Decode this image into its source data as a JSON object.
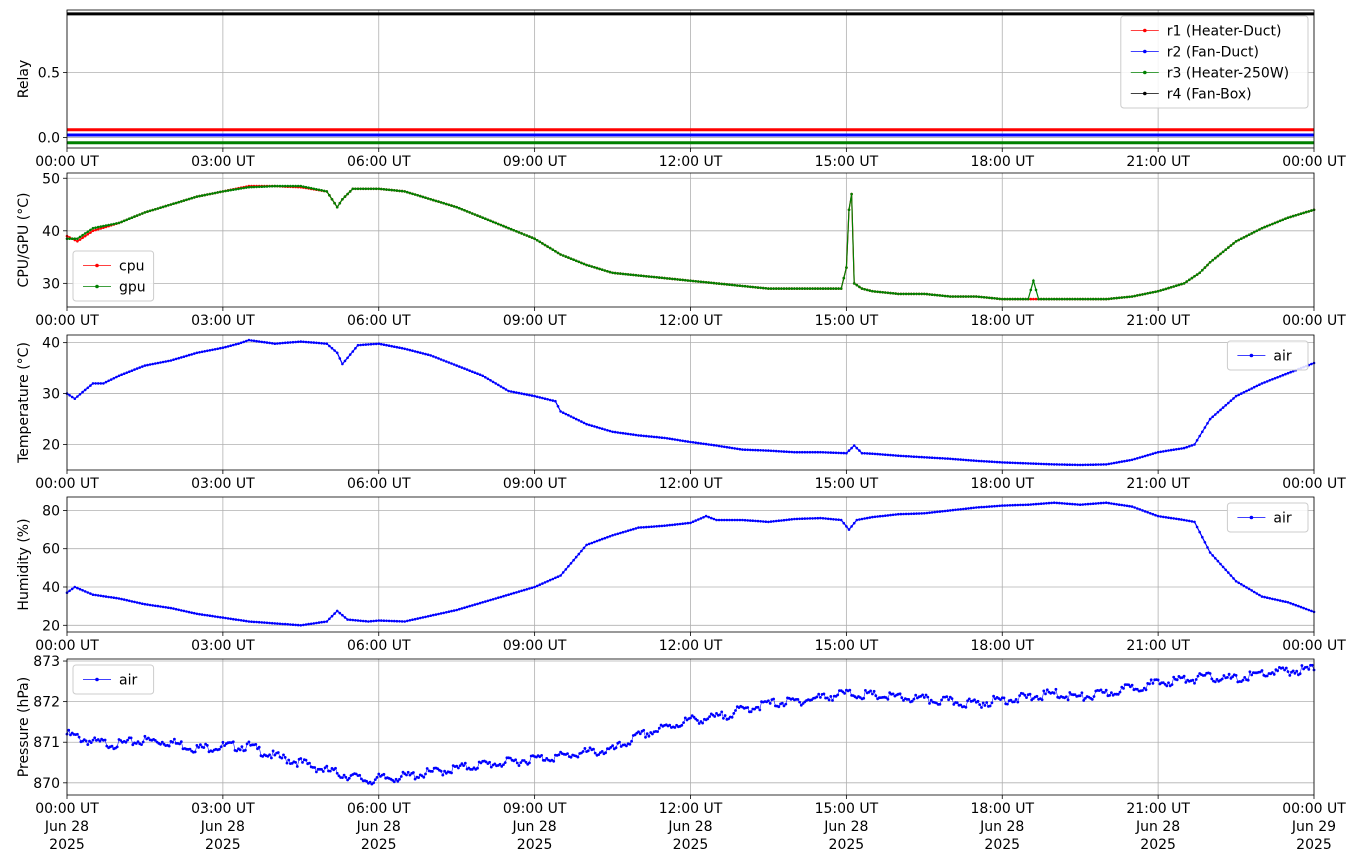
{
  "chart_data": [
    {
      "type": "line",
      "ylabel": "Relay",
      "ylim": [
        -0.08,
        0.98
      ],
      "yticks": [
        0.0,
        0.5
      ],
      "ytick_labels": [
        "0.0",
        "0.5"
      ],
      "xlim": [
        0,
        24
      ],
      "xticks": [
        0,
        3,
        6,
        9,
        12,
        15,
        18,
        21,
        24
      ],
      "xtick_labels": [
        "00:00 UT",
        "03:00 UT",
        "06:00 UT",
        "09:00 UT",
        "12:00 UT",
        "15:00 UT",
        "18:00 UT",
        "21:00 UT",
        "00:00 UT"
      ],
      "grid": true,
      "legend": "top-right",
      "series": [
        {
          "name": "r1 (Heater-Duct)",
          "color": "#ff0000",
          "x": [
            0,
            24
          ],
          "y": [
            0.06,
            0.06
          ]
        },
        {
          "name": "r2 (Fan-Duct)",
          "color": "#0000ff",
          "x": [
            0,
            24
          ],
          "y": [
            0.02,
            0.02
          ]
        },
        {
          "name": "r3 (Heater-250W)",
          "color": "#008000",
          "x": [
            0,
            24
          ],
          "y": [
            -0.04,
            -0.04
          ]
        },
        {
          "name": "r4 (Fan-Box)",
          "color": "#000000",
          "x": [
            0,
            24
          ],
          "y": [
            0.95,
            0.95
          ]
        }
      ]
    },
    {
      "type": "line",
      "ylabel": "CPU/GPU (°C)",
      "ylim": [
        25.5,
        51
      ],
      "yticks": [
        30,
        40,
        50
      ],
      "ytick_labels": [
        "30",
        "40",
        "50"
      ],
      "xlim": [
        0,
        24
      ],
      "xticks": [
        0,
        3,
        6,
        9,
        12,
        15,
        18,
        21,
        24
      ],
      "xtick_labels": [
        "00:00 UT",
        "03:00 UT",
        "06:00 UT",
        "09:00 UT",
        "12:00 UT",
        "15:00 UT",
        "18:00 UT",
        "21:00 UT",
        "00:00 UT"
      ],
      "grid": true,
      "legend": "lower-left",
      "series": [
        {
          "name": "cpu",
          "color": "#ff0000",
          "x": [
            0,
            0.2,
            0.5,
            1.0,
            1.5,
            2.0,
            2.5,
            3.0,
            3.5,
            4.0,
            4.5,
            5.0,
            5.2,
            5.3,
            5.5,
            6.0,
            6.5,
            7.0,
            7.5,
            8.0,
            8.5,
            9.0,
            9.5,
            10.0,
            10.5,
            11.0,
            11.5,
            12.0,
            12.5,
            13.0,
            13.5,
            14.0,
            14.5,
            14.9,
            15.0,
            15.05,
            15.1,
            15.15,
            15.3,
            15.5,
            16.0,
            16.5,
            17.0,
            17.5,
            18.0,
            18.5,
            19.0,
            19.5,
            20.0,
            20.5,
            21.0,
            21.5,
            21.8,
            22.0,
            22.5,
            23.0,
            23.5,
            24.0
          ],
          "y": [
            39.0,
            38.0,
            40.0,
            41.5,
            43.5,
            45.0,
            46.5,
            47.5,
            48.5,
            48.5,
            48.3,
            47.5,
            44.5,
            46.0,
            48.0,
            48.0,
            47.5,
            46.0,
            44.5,
            42.5,
            40.5,
            38.5,
            35.5,
            33.5,
            32.0,
            31.5,
            31.0,
            30.5,
            30.0,
            29.5,
            29.0,
            29.0,
            29.0,
            29.0,
            33.0,
            44.0,
            47.0,
            30.0,
            29.0,
            28.5,
            28.0,
            28.0,
            27.5,
            27.5,
            27.0,
            27.0,
            27.0,
            27.0,
            27.0,
            27.5,
            28.5,
            30.0,
            32.0,
            34.0,
            38.0,
            40.5,
            42.5,
            44.0
          ]
        },
        {
          "name": "gpu",
          "color": "#008000",
          "x": [
            0,
            0.2,
            0.5,
            1.0,
            1.5,
            2.0,
            2.5,
            3.0,
            3.5,
            4.0,
            4.5,
            5.0,
            5.2,
            5.3,
            5.5,
            6.0,
            6.5,
            7.0,
            7.5,
            8.0,
            8.5,
            9.0,
            9.5,
            10.0,
            10.5,
            11.0,
            11.5,
            12.0,
            12.5,
            13.0,
            13.5,
            14.0,
            14.5,
            14.9,
            15.0,
            15.05,
            15.1,
            15.15,
            15.3,
            15.5,
            16.0,
            16.5,
            17.0,
            17.5,
            18.0,
            18.5,
            18.6,
            18.7,
            19.0,
            19.5,
            20.0,
            20.5,
            21.0,
            21.5,
            21.8,
            22.0,
            22.5,
            23.0,
            23.5,
            24.0
          ],
          "y": [
            38.5,
            38.5,
            40.5,
            41.5,
            43.5,
            45.0,
            46.5,
            47.5,
            48.3,
            48.5,
            48.5,
            47.5,
            44.5,
            46.0,
            48.0,
            48.0,
            47.5,
            46.0,
            44.5,
            42.5,
            40.5,
            38.5,
            35.5,
            33.5,
            32.0,
            31.5,
            31.0,
            30.5,
            30.0,
            29.5,
            29.0,
            29.0,
            29.0,
            29.0,
            33.0,
            44.0,
            47.0,
            30.0,
            29.0,
            28.5,
            28.0,
            28.0,
            27.5,
            27.5,
            27.0,
            27.0,
            30.5,
            27.0,
            27.0,
            27.0,
            27.0,
            27.5,
            28.5,
            30.0,
            32.0,
            34.0,
            38.0,
            40.5,
            42.5,
            44.0
          ]
        }
      ]
    },
    {
      "type": "line",
      "ylabel": "Temperature (°C)",
      "ylim": [
        15,
        41.5
      ],
      "yticks": [
        20,
        30,
        40
      ],
      "ytick_labels": [
        "20",
        "30",
        "40"
      ],
      "xlim": [
        0,
        24
      ],
      "xticks": [
        0,
        3,
        6,
        9,
        12,
        15,
        18,
        21,
        24
      ],
      "xtick_labels": [
        "00:00 UT",
        "03:00 UT",
        "06:00 UT",
        "09:00 UT",
        "12:00 UT",
        "15:00 UT",
        "18:00 UT",
        "21:00 UT",
        "00:00 UT"
      ],
      "grid": true,
      "legend": "top-right",
      "series": [
        {
          "name": "air",
          "color": "#0000ff",
          "x": [
            0,
            0.15,
            0.5,
            0.7,
            1.0,
            1.5,
            2.0,
            2.5,
            3.0,
            3.3,
            3.5,
            4.0,
            4.5,
            5.0,
            5.2,
            5.3,
            5.6,
            6.0,
            6.5,
            7.0,
            7.5,
            8.0,
            8.5,
            9.0,
            9.4,
            9.5,
            10.0,
            10.5,
            11.0,
            11.5,
            12.0,
            12.5,
            13.0,
            13.5,
            14.0,
            14.5,
            15.0,
            15.15,
            15.3,
            15.5,
            16.0,
            16.5,
            17.0,
            17.5,
            18.0,
            18.5,
            19.0,
            19.5,
            20.0,
            20.5,
            21.0,
            21.5,
            21.7,
            22.0,
            22.5,
            23.0,
            23.5,
            24.0
          ],
          "y": [
            30.0,
            29.0,
            32.0,
            32.0,
            33.5,
            35.5,
            36.5,
            38.0,
            39.0,
            39.8,
            40.5,
            39.8,
            40.2,
            39.8,
            38.0,
            35.8,
            39.5,
            39.8,
            38.8,
            37.5,
            35.5,
            33.5,
            30.5,
            29.5,
            28.5,
            26.5,
            24.0,
            22.5,
            21.8,
            21.3,
            20.5,
            19.8,
            19.0,
            18.8,
            18.5,
            18.5,
            18.3,
            19.8,
            18.3,
            18.2,
            17.8,
            17.5,
            17.2,
            16.8,
            16.5,
            16.3,
            16.1,
            16.0,
            16.1,
            17.0,
            18.5,
            19.3,
            20.0,
            25.0,
            29.5,
            32.0,
            34.0,
            36.0
          ]
        }
      ]
    },
    {
      "type": "line",
      "ylabel": "Humidity (%)",
      "ylim": [
        16.5,
        87
      ],
      "yticks": [
        20,
        40,
        60,
        80
      ],
      "ytick_labels": [
        "20",
        "40",
        "60",
        "80"
      ],
      "xlim": [
        0,
        24
      ],
      "xticks": [
        0,
        3,
        6,
        9,
        12,
        15,
        18,
        21,
        24
      ],
      "xtick_labels": [
        "00:00 UT",
        "03:00 UT",
        "06:00 UT",
        "09:00 UT",
        "12:00 UT",
        "15:00 UT",
        "18:00 UT",
        "21:00 UT",
        "00:00 UT"
      ],
      "grid": true,
      "legend": "top-right",
      "series": [
        {
          "name": "air",
          "color": "#0000ff",
          "x": [
            0,
            0.15,
            0.5,
            1.0,
            1.5,
            2.0,
            2.5,
            3.0,
            3.5,
            4.0,
            4.5,
            5.0,
            5.2,
            5.4,
            5.8,
            6.0,
            6.5,
            7.0,
            7.5,
            8.0,
            8.5,
            9.0,
            9.5,
            10.0,
            10.5,
            11.0,
            11.5,
            12.0,
            12.3,
            12.5,
            13.0,
            13.5,
            14.0,
            14.5,
            14.9,
            15.05,
            15.2,
            15.5,
            16.0,
            16.5,
            17.0,
            17.5,
            18.0,
            18.5,
            19.0,
            19.5,
            20.0,
            20.5,
            21.0,
            21.5,
            21.7,
            22.0,
            22.5,
            23.0,
            23.5,
            24.0
          ],
          "y": [
            37.0,
            40.0,
            36.0,
            34.0,
            31.0,
            29.0,
            26.0,
            24.0,
            22.0,
            21.0,
            20.0,
            22.0,
            27.5,
            23.0,
            22.0,
            22.5,
            22.0,
            25.0,
            28.0,
            32.0,
            36.0,
            40.0,
            46.0,
            62.0,
            67.0,
            71.0,
            72.0,
            73.5,
            77.0,
            75.0,
            75.0,
            74.0,
            75.5,
            76.0,
            75.0,
            70.0,
            75.0,
            76.5,
            78.0,
            78.5,
            80.0,
            81.5,
            82.5,
            83.0,
            84.0,
            83.0,
            84.0,
            82.0,
            77.0,
            75.0,
            74.0,
            58.0,
            43.0,
            35.0,
            32.0,
            27.0
          ]
        }
      ]
    },
    {
      "type": "scatter",
      "ylabel": "Pressure (hPa)",
      "ylim": [
        869.7,
        873.05
      ],
      "yticks": [
        870,
        871,
        872,
        873
      ],
      "ytick_labels": [
        "870",
        "871",
        "872",
        "873"
      ],
      "xlim": [
        0,
        24
      ],
      "xticks": [
        0,
        3,
        6,
        9,
        12,
        15,
        18,
        21,
        24
      ],
      "xtick_labels": [
        "00:00 UT\nJun 28\n2025",
        "03:00 UT\nJun 28\n2025",
        "06:00 UT\nJun 28\n2025",
        "09:00 UT\nJun 28\n2025",
        "12:00 UT\nJun 28\n2025",
        "15:00 UT\nJun 28\n2025",
        "18:00 UT\nJun 28\n2025",
        "21:00 UT\nJun 28\n2025",
        "00:00 UT\nJun 29\n2025"
      ],
      "grid": true,
      "legend": "top-left",
      "series": [
        {
          "name": "air",
          "color": "#0000ff",
          "x": [
            0,
            0.5,
            1.0,
            1.5,
            2.0,
            2.5,
            3.0,
            3.5,
            4.0,
            4.5,
            5.0,
            5.5,
            5.8,
            6.0,
            6.5,
            7.0,
            7.5,
            8.0,
            8.5,
            9.0,
            9.5,
            10.0,
            10.5,
            11.0,
            11.5,
            12.0,
            12.5,
            13.0,
            13.5,
            14.0,
            14.5,
            15.0,
            15.5,
            16.0,
            16.5,
            17.0,
            17.5,
            18.0,
            18.5,
            19.0,
            19.5,
            20.0,
            20.5,
            21.0,
            21.5,
            22.0,
            22.5,
            23.0,
            23.5,
            24.0
          ],
          "y": [
            871.2,
            871.0,
            870.95,
            871.05,
            871.0,
            870.85,
            870.9,
            870.9,
            870.65,
            870.5,
            870.3,
            870.15,
            870.05,
            870.1,
            870.15,
            870.25,
            870.35,
            870.45,
            870.5,
            870.6,
            870.65,
            870.75,
            870.8,
            871.15,
            871.35,
            871.55,
            871.6,
            871.8,
            871.95,
            872.0,
            872.1,
            872.2,
            872.15,
            872.1,
            872.05,
            872.0,
            871.95,
            872.05,
            872.1,
            872.2,
            872.1,
            872.2,
            872.35,
            872.45,
            872.55,
            872.6,
            872.55,
            872.7,
            872.75,
            872.8
          ]
        }
      ]
    }
  ]
}
